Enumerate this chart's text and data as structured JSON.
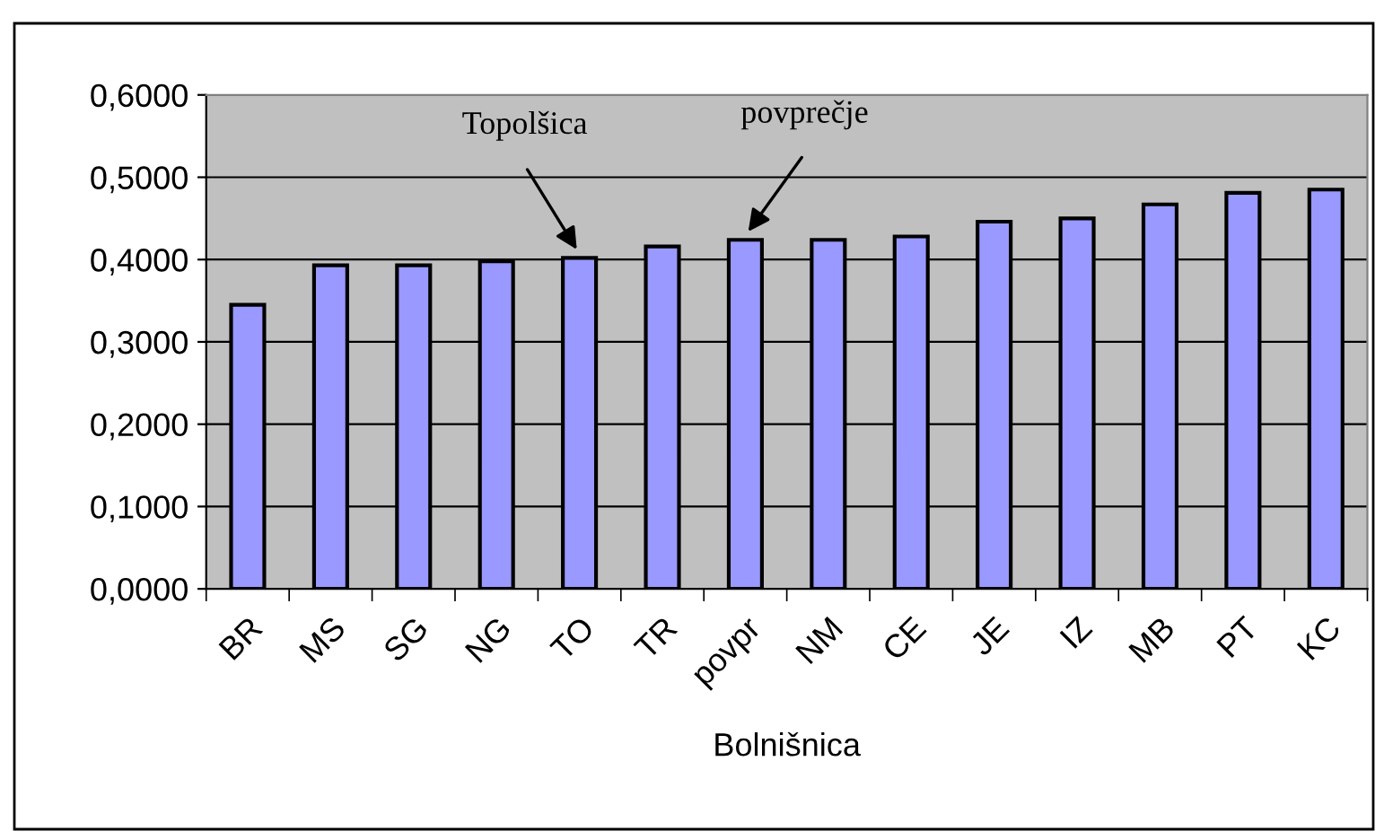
{
  "chart_data": {
    "type": "bar",
    "xlabel": "Bolnišnica",
    "categories": [
      "BR",
      "MS",
      "SG",
      "NG",
      "TO",
      "TR",
      "povpr",
      "NM",
      "CE",
      "JE",
      "IZ",
      "MB",
      "PT",
      "KC"
    ],
    "values": [
      0.345,
      0.393,
      0.393,
      0.398,
      0.402,
      0.416,
      0.424,
      0.424,
      0.428,
      0.446,
      0.45,
      0.467,
      0.481,
      0.485
    ],
    "color": "#9999ff",
    "ylim": [
      0,
      0.6
    ],
    "yticks": [
      {
        "value": 0,
        "label": "0,0000"
      },
      {
        "value": 0.1,
        "label": "0,1000"
      },
      {
        "value": 0.2,
        "label": "0,2000"
      },
      {
        "value": 0.3,
        "label": "0,3000"
      },
      {
        "value": 0.4,
        "label": "0,4000"
      },
      {
        "value": 0.5,
        "label": "0,5000"
      },
      {
        "value": 0.6,
        "label": "0,6000"
      }
    ],
    "grid": "y",
    "annotations": [
      {
        "text": "Topolšica",
        "x": "TO",
        "y": 0.402
      },
      {
        "text": "povprečje",
        "x": "povpr",
        "y": 0.424
      }
    ]
  }
}
